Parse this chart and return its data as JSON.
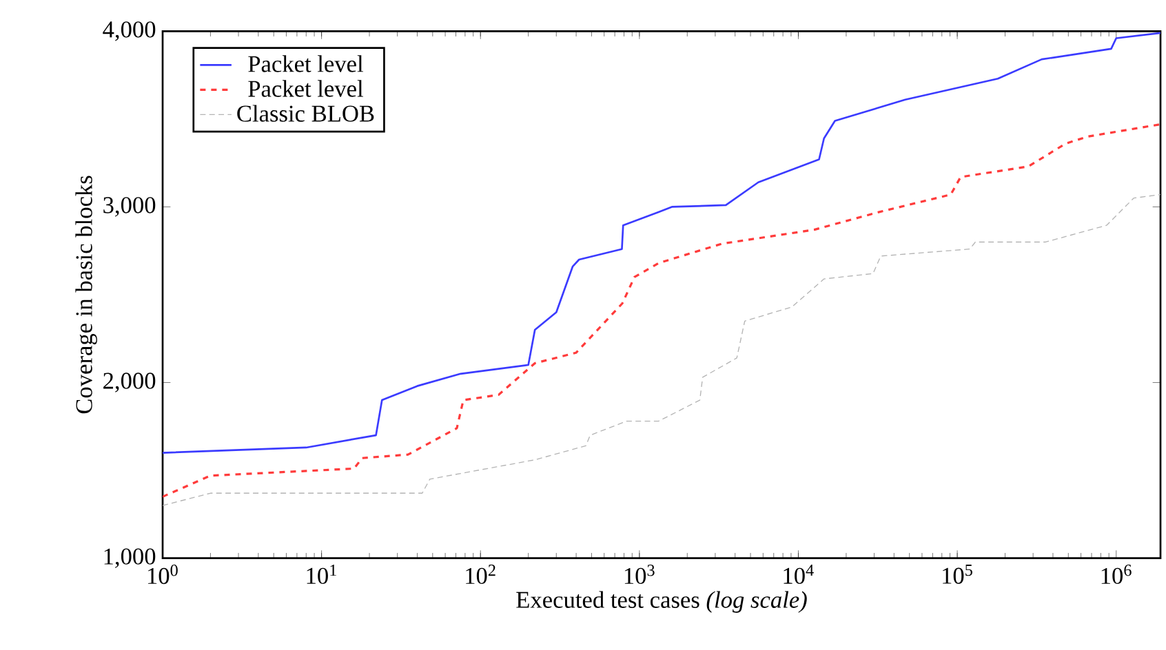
{
  "chart_data": {
    "type": "line",
    "xlabel": "Executed test cases *(log scale)*",
    "ylabel": "Coverage in basic blocks",
    "log": "x",
    "xlim": [
      1,
      1900000
    ],
    "ylim": [
      1000,
      4000
    ],
    "xticks": [
      {
        "value": 1,
        "label": "10$^{0}$"
      },
      {
        "value": 10,
        "label": "10$^{1}$"
      },
      {
        "value": 100,
        "label": "10$^{2}$"
      },
      {
        "value": 1000,
        "label": "10$^{3}$"
      },
      {
        "value": 10000,
        "label": "10$^{4}$"
      },
      {
        "value": 100000,
        "label": "10$^{5}$"
      },
      {
        "value": 1000000,
        "label": "10$^{6}$"
      }
    ],
    "yticks": [
      {
        "value": 1000,
        "label": "1,000"
      },
      {
        "value": 2000,
        "label": "2,000"
      },
      {
        "value": 3000,
        "label": "3,000"
      },
      {
        "value": 4000,
        "label": "4,000"
      }
    ],
    "legend": "top left",
    "marker": "none",
    "grid": false,
    "series": [
      {
        "name": "Packet level",
        "color": "#3b3bff",
        "line_style": "solid",
        "x": [
          1,
          8,
          22,
          24,
          40,
          75,
          200,
          220,
          300,
          380,
          417,
          776,
          790,
          1320,
          1600,
          3500,
          5600,
          13500,
          14500,
          17000,
          47000,
          180000,
          340000,
          930000,
          1000000,
          1900000
        ],
        "values": [
          1600,
          1630,
          1700,
          1900,
          1980,
          2050,
          2100,
          2300,
          2400,
          2660,
          2700,
          2760,
          2895,
          2970,
          3000,
          3010,
          3140,
          3270,
          3390,
          3490,
          3610,
          3730,
          3840,
          3900,
          3960,
          3990
        ]
      },
      {
        "name": "Packet level",
        "color": "#ff3b3b",
        "line_style": "dashed",
        "x": [
          1,
          2,
          16,
          18,
          35,
          71,
          78,
          130,
          220,
          400,
          780,
          930,
          1320,
          3300,
          12600,
          32000,
          91000,
          105000,
          280000,
          480000,
          660000,
          1900000
        ],
        "values": [
          1350,
          1470,
          1510,
          1570,
          1590,
          1740,
          1900,
          1930,
          2110,
          2170,
          2450,
          2600,
          2680,
          2790,
          2870,
          2970,
          3070,
          3170,
          3230,
          3360,
          3400,
          3470
        ]
      },
      {
        "name": "Classic BLOB",
        "color": "#b4b4b4",
        "line_style": "dotted",
        "x": [
          1,
          2,
          43,
          48,
          220,
          460,
          490,
          830,
          1320,
          2400,
          2500,
          4100,
          4600,
          9100,
          14500,
          29500,
          33000,
          120000,
          130000,
          360000,
          870000,
          1290000,
          1900000
        ],
        "values": [
          1300,
          1370,
          1370,
          1450,
          1560,
          1640,
          1700,
          1780,
          1780,
          1900,
          2030,
          2140,
          2350,
          2430,
          2590,
          2620,
          2720,
          2760,
          2800,
          2800,
          2895,
          3050,
          3070
        ]
      }
    ]
  }
}
